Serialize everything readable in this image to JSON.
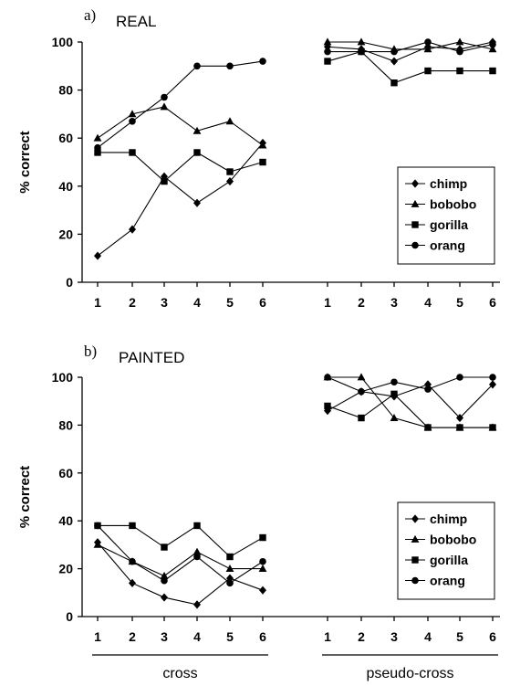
{
  "chart_data": [
    {
      "type": "line",
      "panel_letter": "a)",
      "title": "REAL",
      "ylabel": "% correct",
      "ylim": [
        0,
        100
      ],
      "yticks": [
        0,
        20,
        40,
        60,
        80,
        100
      ],
      "groups": [
        {
          "categories": [
            "1",
            "2",
            "3",
            "4",
            "5",
            "6"
          ]
        },
        {
          "categories": [
            "1",
            "2",
            "3",
            "4",
            "5",
            "6"
          ]
        }
      ],
      "series": [
        {
          "name": "chimp",
          "marker": "diamond",
          "values": [
            [
              11,
              22,
              44,
              33,
              42,
              58
            ],
            [
              98,
              97,
              92,
              98,
              97,
              100
            ]
          ]
        },
        {
          "name": "bobobo",
          "marker": "triangle",
          "values": [
            [
              60,
              70,
              73,
              63,
              67,
              57
            ],
            [
              100,
              100,
              97,
              97,
              100,
              97
            ]
          ]
        },
        {
          "name": "gorilla",
          "marker": "square",
          "values": [
            [
              54,
              54,
              42,
              54,
              46,
              50
            ],
            [
              92,
              96,
              83,
              88,
              88,
              88
            ]
          ]
        },
        {
          "name": "orang",
          "marker": "circle",
          "values": [
            [
              56,
              67,
              77,
              90,
              90,
              92
            ],
            [
              96,
              96,
              96,
              100,
              96,
              99
            ]
          ]
        }
      ],
      "legend": "lower-right"
    },
    {
      "type": "line",
      "panel_letter": "b)",
      "title": "PAINTED",
      "ylabel": "% correct",
      "ylim": [
        0,
        100
      ],
      "yticks": [
        0,
        20,
        40,
        60,
        80,
        100
      ],
      "groups": [
        {
          "categories": [
            "1",
            "2",
            "3",
            "4",
            "5",
            "6"
          ],
          "label": "cross"
        },
        {
          "categories": [
            "1",
            "2",
            "3",
            "4",
            "5",
            "6"
          ],
          "label": "pseudo-cross"
        }
      ],
      "series": [
        {
          "name": "chimp",
          "marker": "diamond",
          "values": [
            [
              31,
              14,
              8,
              5,
              16,
              11
            ],
            [
              86,
              94,
              92,
              97,
              83,
              97
            ]
          ]
        },
        {
          "name": "bobobo",
          "marker": "triangle",
          "values": [
            [
              30,
              23,
              17,
              27,
              20,
              20
            ],
            [
              100,
              100,
              83,
              79,
              79,
              79
            ]
          ]
        },
        {
          "name": "gorilla",
          "marker": "square",
          "values": [
            [
              38,
              38,
              29,
              38,
              25,
              33
            ],
            [
              88,
              83,
              93,
              79,
              79,
              79
            ]
          ]
        },
        {
          "name": "orang",
          "marker": "circle",
          "values": [
            [
              38,
              23,
              15,
              25,
              14,
              23
            ],
            [
              100,
              94,
              98,
              95,
              100,
              100
            ]
          ]
        }
      ],
      "legend": "lower-right"
    }
  ]
}
